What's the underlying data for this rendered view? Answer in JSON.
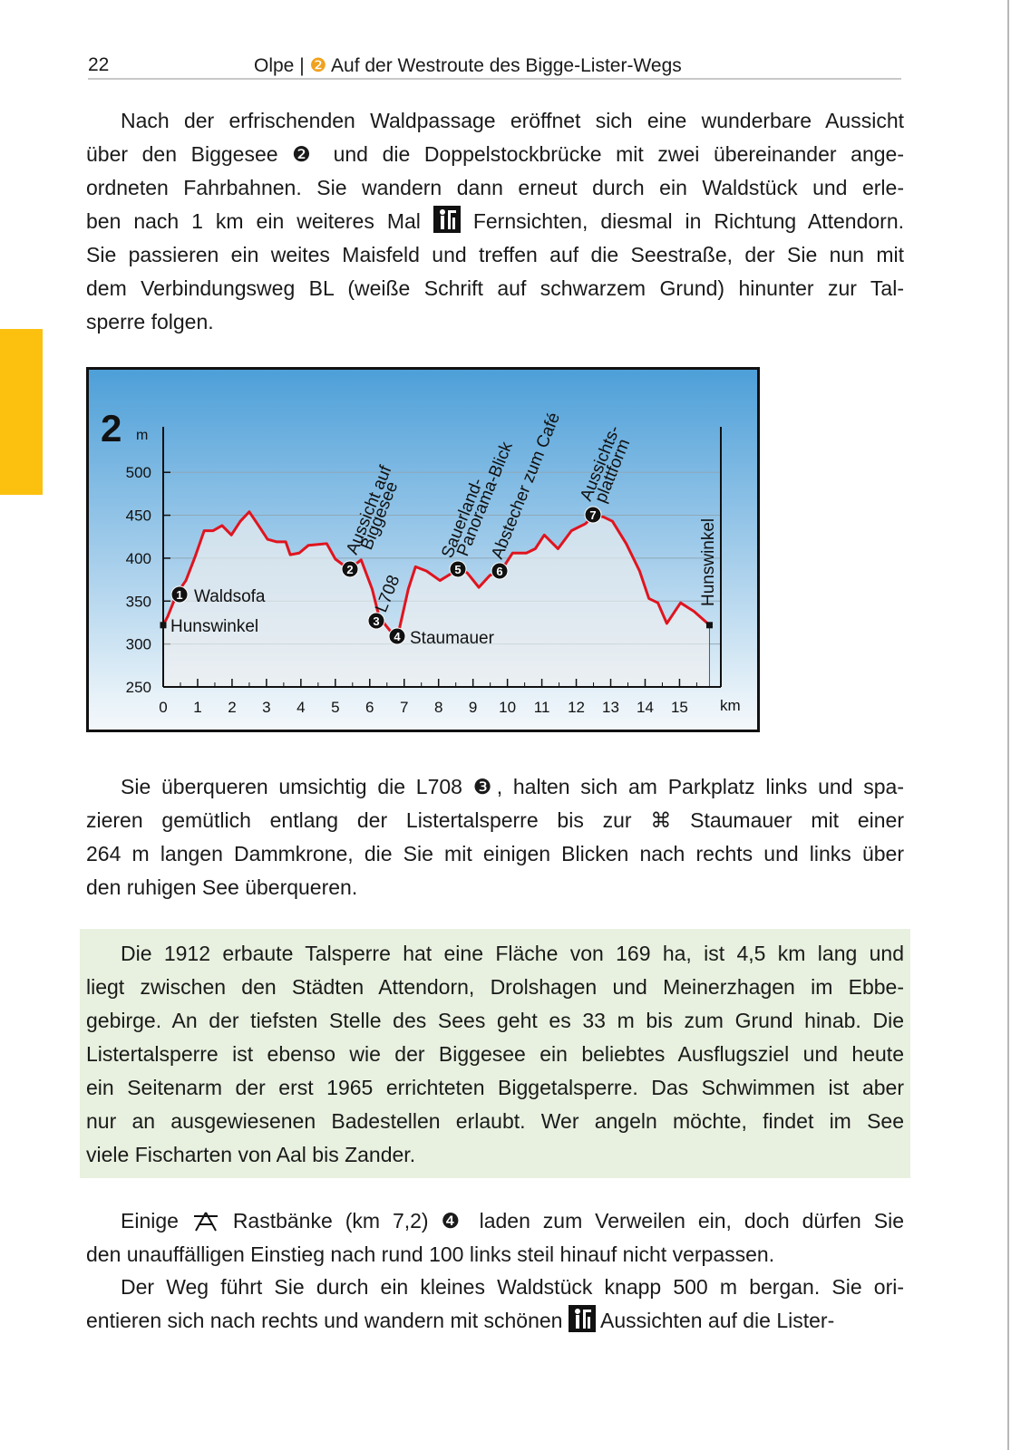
{
  "header": {
    "page_number": "22",
    "title_parts": [
      "Olpe |",
      "❷",
      "Auf der Westroute des Bigge-Lister-Wegs"
    ]
  },
  "paragraphs": [
    {
      "lines": [
        "Nach der erfrischenden Waldpassage eröffnet sich eine wunderbare Aussicht",
        "über den Biggesee ❷ und die Doppelstockbrücke mit zwei übereinander ange-",
        "ordneten Fahrbahnen. Sie wandern dann erneut durch ein Waldstück und erle-",
        [
          "ben nach 1 km ein weiteres Mal",
          "Fernsichten, diesmal in Richtung Attendorn."
        ],
        "Sie passieren ein weites Maisfeld und treffen auf die Seestraße, der Sie nun mit",
        "dem Verbindungsweg BL (weiße Schrift auf schwarzem Grund) hinunter zur Tal-",
        "sperre folgen."
      ]
    },
    {
      "lines": [
        "Sie überqueren umsichtig die L708 ❸, halten sich am Parkplatz links und spa-",
        "zieren gemütlich entlang der Listertalsperre bis zur ⌘ Staumauer mit einer",
        "264 m langen Dammkrone, die Sie mit einigen Blicken nach rechts und links über",
        "den ruhigen See überqueren."
      ]
    },
    {
      "lines": [
        "Die 1912 erbaute Talsperre hat eine Fläche von 169 ha, ist 4,5 km lang und",
        "liegt zwischen den Städten Attendorn, Drolshagen und Meinerzhagen im Ebbe-",
        "gebirge. An der tiefsten Stelle des Sees geht es 33 m bis zum Grund hinab. Die",
        "Listertalsperre ist ebenso wie der Biggesee ein beliebtes Ausflugsziel und heute",
        "ein Seitenarm der erst 1965 errichteten Biggetalsperre. Das Schwimmen ist aber",
        "nur an ausgewiesenen Badestellen erlaubt. Wer angeln möchte, findet im See",
        "viele Fischarten von Aal bis Zander."
      ]
    },
    {
      "lines": [
        [
          "Einige",
          "Rastbänke (km 7,2) ❹ laden zum Verweilen ein, doch dürfen Sie"
        ],
        "den unauffälligen Einstieg nach rund 100 links steil hinauf nicht verpassen."
      ]
    },
    {
      "lines": [
        "Der Weg führt Sie durch ein kleines Waldstück knapp 500 m bergan. Sie ori-",
        [
          "entieren sich nach rechts und wandern mit schönen",
          "Aussichten auf die Lister-"
        ]
      ]
    }
  ],
  "chart_data": {
    "type": "line",
    "title": "2",
    "y_unit": "m",
    "x_unit": "km",
    "color": "#e0141e",
    "x": [
      0,
      0.13,
      0.4,
      0.66,
      0.92,
      1.19,
      1.45,
      1.71,
      1.98,
      2.24,
      2.5,
      2.77,
      3.03,
      3.3,
      3.56,
      3.69,
      3.95,
      4.22,
      4.75,
      5.0,
      5.4,
      5.75,
      6.07,
      6.27,
      6.46,
      6.72,
      6.85,
      7.12,
      7.33,
      7.65,
      8.04,
      8.57,
      8.83,
      9.17,
      9.49,
      9.81,
      10.15,
      10.55,
      10.81,
      11.07,
      11.47,
      11.86,
      12.26,
      12.52,
      12.79,
      13.05,
      13.45,
      13.84,
      14.11,
      14.37,
      14.63,
      15.03,
      15.42,
      15.87
    ],
    "values": [
      322,
      332,
      359,
      374,
      401,
      432,
      432,
      438,
      427,
      443,
      454,
      438,
      422,
      419,
      419,
      404,
      406,
      415,
      417,
      399,
      387,
      398,
      364,
      332,
      322,
      309,
      316,
      364,
      390,
      385,
      374,
      387,
      383,
      366,
      380,
      385,
      406,
      406,
      411,
      427,
      411,
      432,
      440,
      450,
      448,
      443,
      417,
      385,
      353,
      348,
      324,
      348,
      338,
      322
    ],
    "xlim": [
      0,
      16.2
    ],
    "ylim": [
      250,
      553
    ],
    "xticks": [
      0,
      1,
      2,
      3,
      4,
      5,
      6,
      7,
      8,
      9,
      10,
      11,
      12,
      13,
      14,
      15
    ],
    "yticks": [
      250,
      300,
      350,
      400,
      450,
      500
    ],
    "grid": true,
    "waypoints": [
      "1",
      "2",
      "3",
      "4",
      "5",
      "6",
      "7"
    ],
    "annotations": [
      "Waldsofa",
      "Hunswinkel",
      "Staumauer",
      "Aussicht auf",
      "Biggesee",
      "L708",
      "Sauerland-",
      "Panorama-Blick",
      "Abstecher zum Café",
      "Aussichts-",
      "plattform",
      "Hunswinkel"
    ]
  }
}
